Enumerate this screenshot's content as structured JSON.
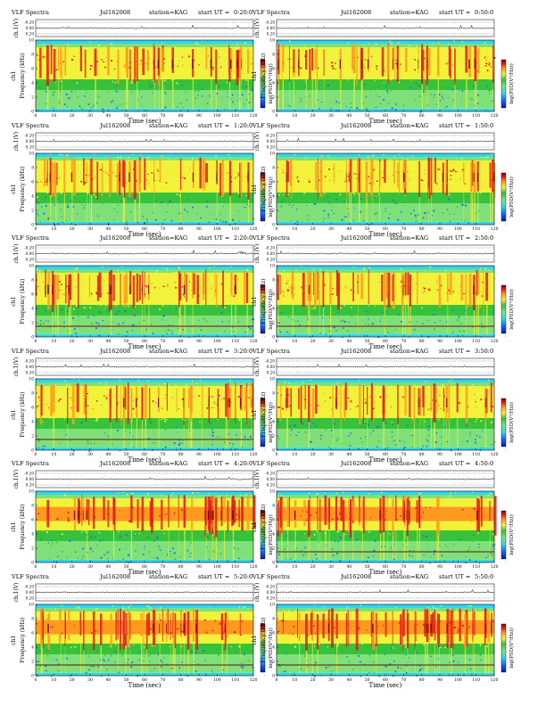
{
  "chart_data": {
    "type": "heatmap",
    "title": "VLF Spectra",
    "date": "Jul162008",
    "station": "station=KAG",
    "start_prefix": "start UT =",
    "xlabel": "Time (sec)",
    "ylabel_spec": "Frequency (kHz)",
    "ylabel_spec_prefix": "ch1",
    "ylabel_ts": "ch.1(V)",
    "colorbar_label": "log(PSD(V²/Hz))",
    "xlim": [
      0,
      120
    ],
    "x_ticks": [
      "0",
      "10",
      "20",
      "30",
      "40",
      "50",
      "60",
      "70",
      "80",
      "90",
      "100",
      "110",
      "120"
    ],
    "ylim_spec": [
      0,
      10
    ],
    "y_ticks_spec": [
      "0",
      "2",
      "4",
      "6",
      "8",
      "10"
    ],
    "y_ticks_ts": [
      "-0.20",
      "0.00",
      "0.20"
    ],
    "colormap": [
      "#0b1a9e",
      "#1468ff",
      "#2fd6f0",
      "#7fe07a",
      "#36c23a",
      "#f2f23a",
      "#ff9a1e",
      "#e21b1b",
      "#7a0a0a"
    ],
    "panels": [
      {
        "start": "0:20:0",
        "intensity": 0.55,
        "hline_khz": null
      },
      {
        "start": "0:50:0",
        "intensity": 0.55,
        "hline_khz": null
      },
      {
        "start": "1:20:0",
        "intensity": 0.55,
        "hline_khz": null
      },
      {
        "start": "1:50:0",
        "intensity": 0.55,
        "hline_khz": null
      },
      {
        "start": "2:20:0",
        "intensity": 0.5,
        "hline_khz": 1.5
      },
      {
        "start": "2:50:0",
        "intensity": 0.5,
        "hline_khz": 1.5
      },
      {
        "start": "3:20:0",
        "intensity": 0.5,
        "hline_khz": 1.5
      },
      {
        "start": "3:50:0",
        "intensity": 0.5,
        "hline_khz": null
      },
      {
        "start": "4:20:0",
        "intensity": 0.62,
        "hline_khz": null
      },
      {
        "start": "4:50:0",
        "intensity": 0.7,
        "hline_khz": 1.5
      },
      {
        "start": "5:20:0",
        "intensity": 0.72,
        "hline_khz": 1.5
      },
      {
        "start": "5:50:0",
        "intensity": 0.78,
        "hline_khz": 1.5
      }
    ]
  }
}
